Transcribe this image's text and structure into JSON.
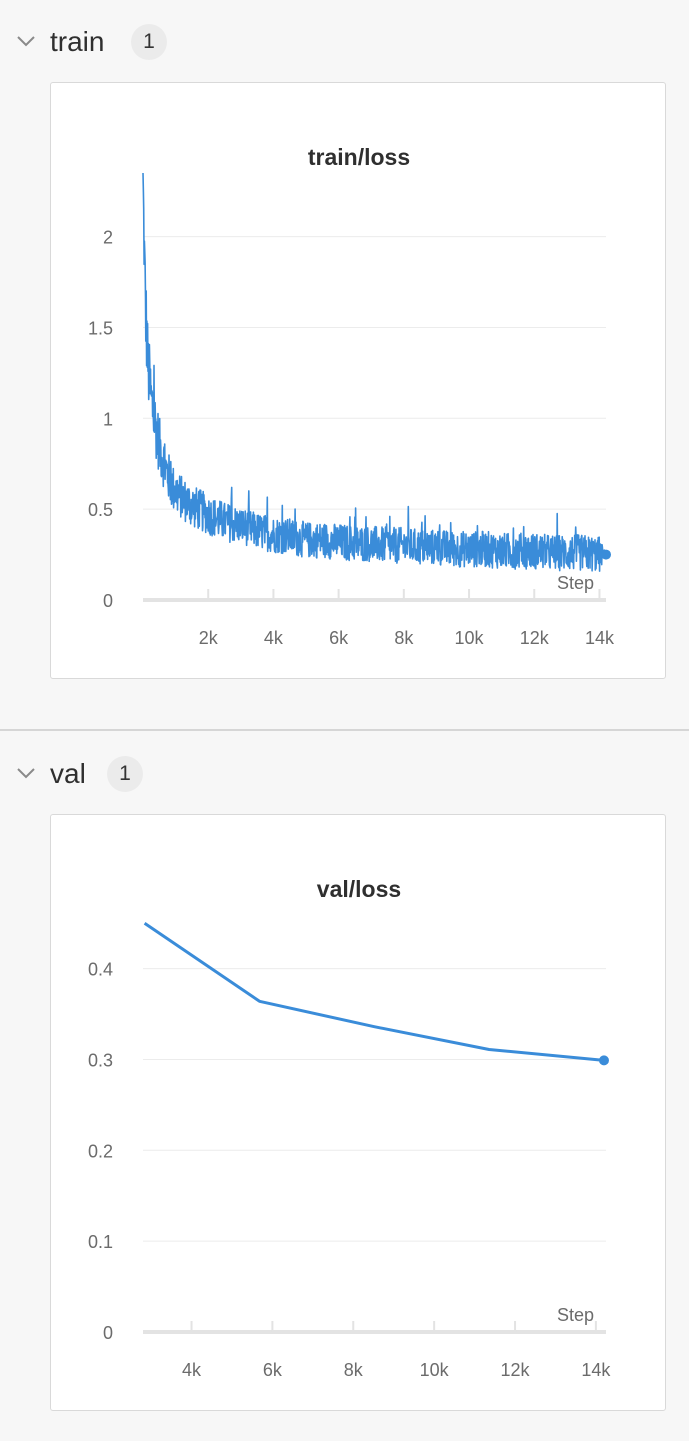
{
  "sections": [
    {
      "name": "train",
      "count": "1"
    },
    {
      "name": "val",
      "count": "1"
    }
  ],
  "colors": {
    "series": "#3a8cd9",
    "grid": "#ececec",
    "axis": "#e3e3e3",
    "tick_text": "#6b6b6b"
  },
  "chart_data": [
    {
      "type": "line",
      "title": "train/loss",
      "xlabel": "Step",
      "ylabel": "",
      "xlim": [
        0,
        14200
      ],
      "ylim": [
        0,
        2.35
      ],
      "x_ticks": [
        2000,
        4000,
        6000,
        8000,
        10000,
        12000,
        14000
      ],
      "x_tick_labels": [
        "2k",
        "4k",
        "6k",
        "8k",
        "10k",
        "12k",
        "14k"
      ],
      "y_ticks": [
        0,
        0.5,
        1,
        1.5,
        2
      ],
      "y_tick_labels": [
        "0",
        "0.5",
        "1",
        "1.5",
        "2"
      ],
      "grid": true,
      "series": [
        {
          "x": [
            0,
            40,
            80,
            150,
            250,
            350,
            500,
            700,
            900,
            1200,
            1500,
            2000,
            2500,
            3000,
            3500,
            4000,
            4500,
            5000,
            5500,
            6000,
            6500,
            7000,
            7500,
            8000,
            8500,
            9000,
            9500,
            10000,
            10500,
            11000,
            11500,
            12000,
            12500,
            13000,
            13500,
            14000,
            14200
          ],
          "y": [
            2.35,
            1.9,
            1.6,
            1.3,
            1.1,
            1.0,
            0.85,
            0.72,
            0.62,
            0.56,
            0.52,
            0.47,
            0.43,
            0.41,
            0.38,
            0.36,
            0.35,
            0.33,
            0.33,
            0.32,
            0.31,
            0.31,
            0.3,
            0.3,
            0.29,
            0.29,
            0.28,
            0.28,
            0.28,
            0.27,
            0.27,
            0.27,
            0.26,
            0.26,
            0.26,
            0.25,
            0.25
          ],
          "noise": [
            0.0,
            0.25,
            0.25,
            0.22,
            0.2,
            0.18,
            0.16,
            0.14,
            0.13,
            0.12,
            0.12,
            0.11,
            0.11,
            0.1,
            0.1,
            0.1,
            0.1,
            0.1,
            0.1,
            0.1,
            0.1,
            0.1,
            0.1,
            0.1,
            0.1,
            0.1,
            0.1,
            0.1,
            0.1,
            0.1,
            0.1,
            0.1,
            0.1,
            0.1,
            0.1,
            0.1,
            0.0
          ],
          "last_value": 0.25
        }
      ]
    },
    {
      "type": "line",
      "title": "val/loss",
      "xlabel": "Step",
      "ylabel": "",
      "xlim": [
        2800,
        14250
      ],
      "ylim": [
        0,
        0.47
      ],
      "x_ticks": [
        4000,
        6000,
        8000,
        10000,
        12000,
        14000
      ],
      "x_tick_labels": [
        "4k",
        "6k",
        "8k",
        "10k",
        "12k",
        "14k"
      ],
      "y_ticks": [
        0,
        0.1,
        0.2,
        0.3,
        0.4
      ],
      "y_tick_labels": [
        "0",
        "0.1",
        "0.2",
        "0.3",
        "0.4"
      ],
      "grid": true,
      "series": [
        {
          "x": [
            2840,
            5680,
            8520,
            11360,
            14200
          ],
          "y": [
            0.45,
            0.364,
            0.336,
            0.311,
            0.299
          ]
        }
      ]
    }
  ]
}
